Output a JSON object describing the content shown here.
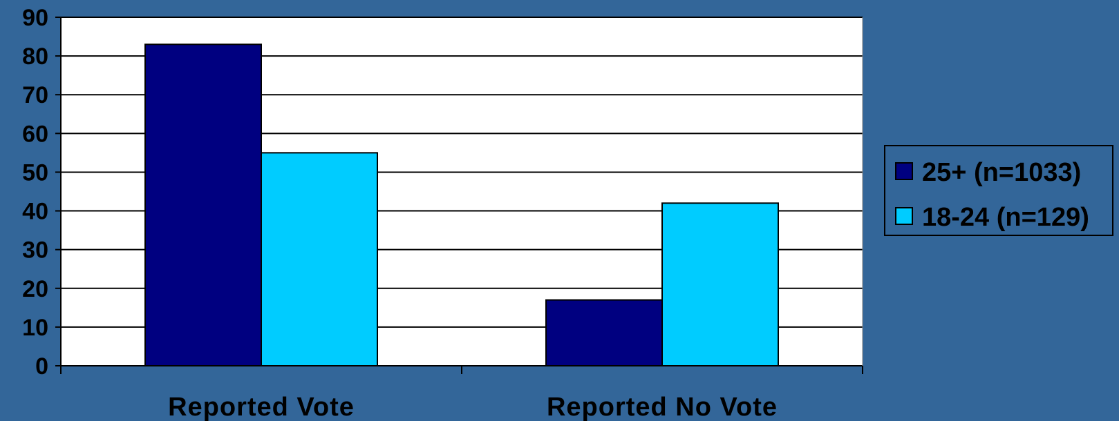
{
  "chart_data": {
    "type": "bar",
    "categories": [
      "Reported Vote",
      "Reported No Vote"
    ],
    "series": [
      {
        "name": "25+ (n=1033)",
        "values": [
          83,
          17
        ],
        "color": "#000080"
      },
      {
        "name": "18-24 (n=129)",
        "values": [
          55,
          42
        ],
        "color": "#00CCFF"
      }
    ],
    "ylim": [
      0,
      90
    ],
    "yticks": [
      0,
      10,
      20,
      30,
      40,
      50,
      60,
      70,
      80,
      90
    ],
    "grid": true,
    "legend_position": "right",
    "background_color": "#336699",
    "plot_background_color": "#FFFFFF"
  }
}
